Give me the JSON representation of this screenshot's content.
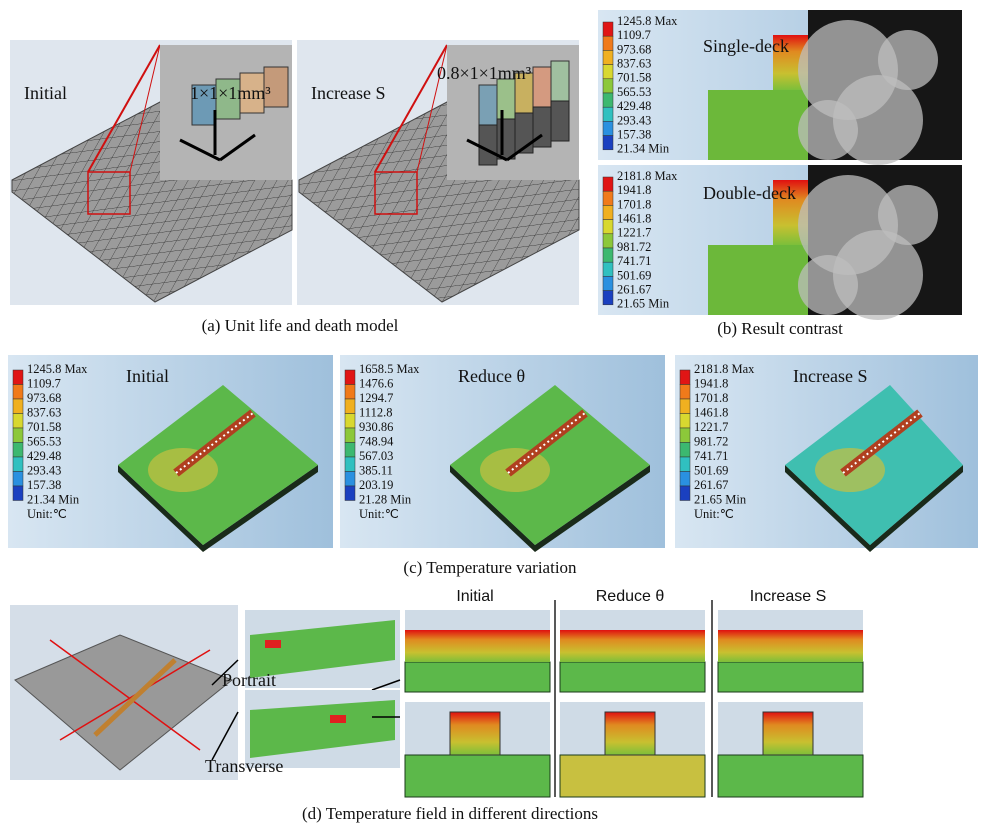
{
  "panel_a": {
    "caption": "(a) Unit life and death model",
    "images": [
      {
        "label": "Initial",
        "dimension": "1×1×1mm³"
      },
      {
        "label": "Increase S",
        "dimension": "0.8×1×1mm³"
      }
    ]
  },
  "panel_b": {
    "caption": "(b) Result contrast",
    "images": [
      {
        "label": "Single-deck",
        "legend": [
          "1245.8 Max",
          "1109.7",
          "973.68",
          "837.63",
          "701.58",
          "565.53",
          "429.48",
          "293.43",
          "157.38",
          "21.34 Min"
        ]
      },
      {
        "label": "Double-deck",
        "legend": [
          "2181.8 Max",
          "1941.8",
          "1701.8",
          "1461.8",
          "1221.7",
          "981.72",
          "741.71",
          "501.69",
          "261.67",
          "21.65 Min"
        ]
      }
    ]
  },
  "panel_c": {
    "caption": "(c) Temperature variation",
    "images": [
      {
        "label": "Initial",
        "legend": [
          "1245.8 Max",
          "1109.7",
          "973.68",
          "837.63",
          "701.58",
          "565.53",
          "429.48",
          "293.43",
          "157.38",
          "21.34 Min"
        ],
        "unit": "Unit:℃"
      },
      {
        "label": "Reduce θ",
        "legend": [
          "1658.5 Max",
          "1476.6",
          "1294.7",
          "1112.8",
          "930.86",
          "748.94",
          "567.03",
          "385.11",
          "203.19",
          "21.28 Min"
        ],
        "unit": "Unit:℃"
      },
      {
        "label": "Increase S",
        "legend": [
          "2181.8 Max",
          "1941.8",
          "1701.8",
          "1461.8",
          "1221.7",
          "981.72",
          "741.71",
          "501.69",
          "261.67",
          "21.65 Min"
        ],
        "unit": "Unit:℃"
      }
    ]
  },
  "panel_d": {
    "caption": "(d) Temperature field in different directions",
    "directions": [
      "Portrait",
      "Transverse"
    ],
    "columns": [
      "Initial",
      "Reduce θ",
      "Increase S"
    ]
  }
}
